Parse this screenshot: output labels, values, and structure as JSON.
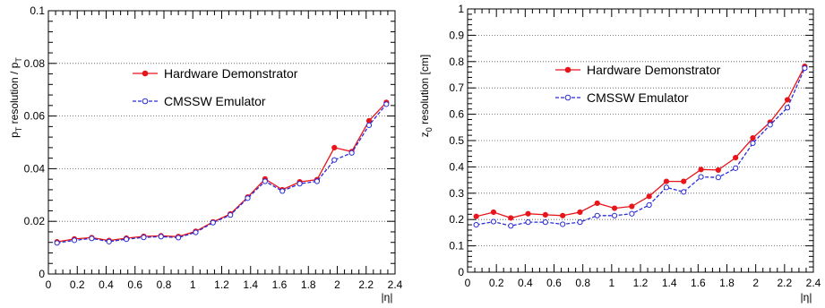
{
  "chart_data": [
    {
      "type": "line",
      "xlabel": "|η|",
      "ylabel_main": "p",
      "ylabel_sub": "T",
      "ylabel_mid": " resolution / p",
      "ylabel_sub2": "T",
      "xlim": [
        0,
        2.4
      ],
      "ylim": [
        0,
        0.1
      ],
      "x_ticks": [
        "0",
        "0.2",
        "0.4",
        "0.6",
        "0.8",
        "1",
        "1.2",
        "1.4",
        "1.6",
        "1.8",
        "2",
        "2.2",
        "2.4"
      ],
      "y_ticks": [
        "0",
        "0.02",
        "0.04",
        "0.06",
        "0.08",
        "0.1"
      ],
      "grid": "horizontal-dotted",
      "legend": "upper-middle",
      "x": [
        0.06,
        0.18,
        0.3,
        0.42,
        0.54,
        0.66,
        0.78,
        0.9,
        1.02,
        1.14,
        1.26,
        1.38,
        1.5,
        1.62,
        1.74,
        1.86,
        1.98,
        2.1,
        2.22,
        2.34
      ],
      "series": [
        {
          "name": "Hardware Demonstrator",
          "color": "#e8151b",
          "marker": "filled-circle",
          "line": "solid",
          "values": [
            0.0122,
            0.0133,
            0.0138,
            0.0127,
            0.0136,
            0.0143,
            0.0145,
            0.0142,
            0.0162,
            0.0198,
            0.0228,
            0.0292,
            0.0361,
            0.032,
            0.035,
            0.0358,
            0.048,
            0.0465,
            0.0582,
            0.0652
          ]
        },
        {
          "name": "CMSSW Emulator",
          "color": "#2b2bd8",
          "marker": "open-circle",
          "line": "dashed",
          "values": [
            0.0118,
            0.0128,
            0.0135,
            0.0123,
            0.0132,
            0.0139,
            0.0142,
            0.0138,
            0.0158,
            0.0195,
            0.0224,
            0.0288,
            0.0352,
            0.0315,
            0.0343,
            0.0352,
            0.0433,
            0.046,
            0.0565,
            0.0645
          ]
        }
      ]
    },
    {
      "type": "line",
      "xlabel": "|η|",
      "ylabel_main": "z",
      "ylabel_sub": "0",
      "ylabel_mid": " resolution [cm]",
      "ylabel_sub2": "",
      "xlim": [
        0,
        2.4
      ],
      "ylim": [
        0,
        1
      ],
      "x_ticks": [
        "0",
        "0.2",
        "0.4",
        "0.6",
        "0.8",
        "1",
        "1.2",
        "1.4",
        "1.6",
        "1.8",
        "2",
        "2.2",
        "2.4"
      ],
      "y_ticks": [
        "0",
        "0.1",
        "0.2",
        "0.3",
        "0.4",
        "0.5",
        "0.6",
        "0.7",
        "0.8",
        "0.9",
        "1"
      ],
      "grid": "horizontal-dotted",
      "legend": "upper-middle",
      "x": [
        0.06,
        0.18,
        0.3,
        0.42,
        0.54,
        0.66,
        0.78,
        0.9,
        1.02,
        1.14,
        1.26,
        1.38,
        1.5,
        1.62,
        1.74,
        1.86,
        1.98,
        2.1,
        2.22,
        2.34
      ],
      "series": [
        {
          "name": "Hardware Demonstrator",
          "color": "#e8151b",
          "marker": "filled-circle",
          "line": "solid",
          "values": [
            0.212,
            0.228,
            0.206,
            0.222,
            0.218,
            0.215,
            0.228,
            0.262,
            0.243,
            0.25,
            0.288,
            0.345,
            0.345,
            0.39,
            0.388,
            0.435,
            0.51,
            0.57,
            0.655,
            0.782
          ]
        },
        {
          "name": "CMSSW Emulator",
          "color": "#2b2bd8",
          "marker": "open-circle",
          "line": "dashed",
          "values": [
            0.18,
            0.192,
            0.176,
            0.19,
            0.19,
            0.182,
            0.19,
            0.215,
            0.215,
            0.222,
            0.255,
            0.322,
            0.305,
            0.362,
            0.36,
            0.395,
            0.49,
            0.56,
            0.625,
            0.775
          ]
        }
      ]
    }
  ]
}
